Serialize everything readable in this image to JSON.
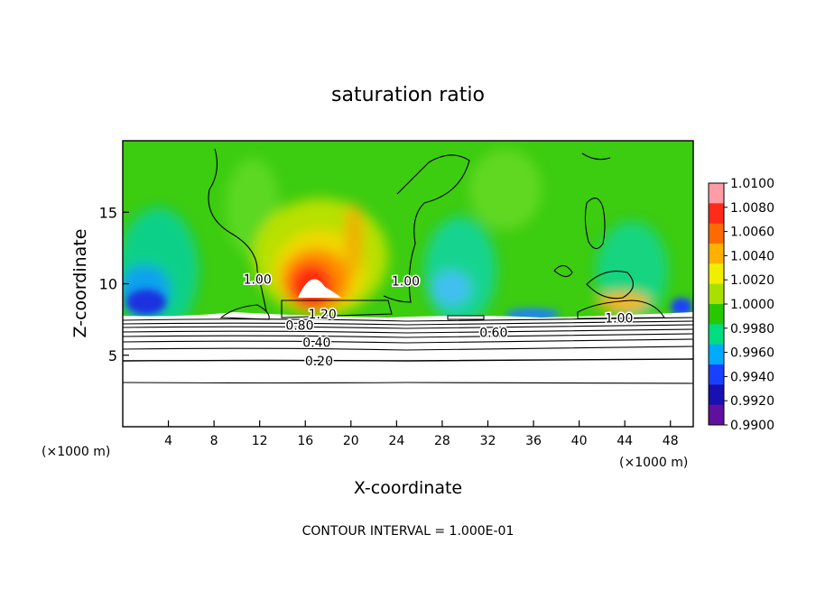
{
  "chart_data": {
    "type": "heatmap",
    "title": "saturation ratio",
    "xlabel": "X-coordinate",
    "ylabel": "Z-coordinate",
    "x_unit_left": "(×1000 m)",
    "x_unit_right": "(×1000 m)",
    "footer": "CONTOUR INTERVAL = 1.000E-01",
    "xlim": [
      0,
      50
    ],
    "ylim": [
      0,
      20
    ],
    "x_ticks": [
      4,
      8,
      12,
      16,
      20,
      24,
      28,
      32,
      36,
      40,
      44,
      48
    ],
    "y_ticks": [
      5,
      10,
      15
    ],
    "colorbar": {
      "levels": [
        0.99,
        0.992,
        0.994,
        0.996,
        0.998,
        1.0,
        1.002,
        1.004,
        1.006,
        1.008,
        1.01
      ],
      "labels": [
        "1.0100",
        "1.0080",
        "1.0060",
        "1.0040",
        "1.0020",
        "1.0000",
        "0.9980",
        "0.9960",
        "0.9940",
        "0.9920",
        "0.9900"
      ],
      "colors": [
        "#ff9da6",
        "#ff2a1a",
        "#ff6a00",
        "#ffb000",
        "#f2ee00",
        "#a8e000",
        "#28c800",
        "#00dc80",
        "#00aaff",
        "#1a40ff",
        "#1810b0",
        "#6010a0"
      ]
    },
    "contour_labels": [
      {
        "text": "1.20",
        "x": 17.5,
        "y": 7.9
      },
      {
        "text": "0.80",
        "x": 15.5,
        "y": 7.1
      },
      {
        "text": "0.40",
        "x": 17.0,
        "y": 5.9
      },
      {
        "text": "0.20",
        "x": 17.2,
        "y": 4.6
      },
      {
        "text": "0.60",
        "x": 32.5,
        "y": 6.6
      },
      {
        "text": "1.00",
        "x": 43.5,
        "y": 7.6
      },
      {
        "text": "1.00",
        "x": 24.8,
        "y": 10.2
      },
      {
        "text": "1.00",
        "x": 11.8,
        "y": 10.3
      }
    ]
  }
}
